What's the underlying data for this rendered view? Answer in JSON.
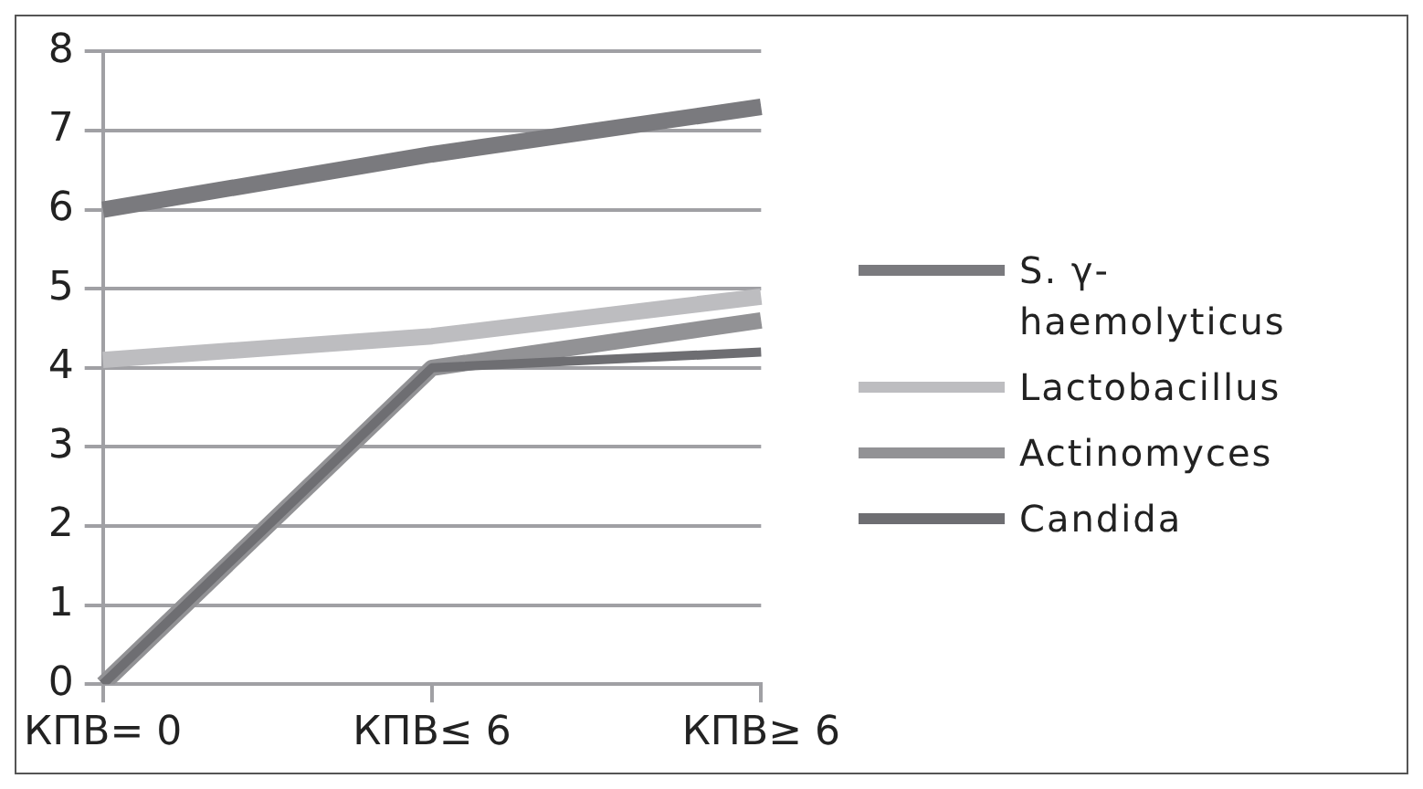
{
  "chart_data": {
    "type": "line",
    "categories": [
      "КПВ= 0",
      "КПВ≤ 6",
      "КПВ≥ 6"
    ],
    "series": [
      {
        "name": "S. γ-haemolyticus",
        "color": "#7a7a7e",
        "values": [
          6,
          6.7,
          7.3
        ]
      },
      {
        "name": "Lactobacillus",
        "color": "#bdbdc0",
        "values": [
          4.1,
          4.4,
          4.9
        ]
      },
      {
        "name": "Actinomyces",
        "color": "#929295",
        "values": [
          0,
          4,
          4.6
        ]
      },
      {
        "name": "Candida",
        "color": "#6e6e72",
        "values": [
          0,
          4,
          4.2
        ]
      }
    ],
    "ylim": [
      0,
      8
    ],
    "yticks": [
      0,
      1,
      2,
      3,
      4,
      5,
      6,
      7,
      8
    ],
    "grid": "y",
    "legend": "right",
    "marker": "none",
    "line_style": "solid"
  }
}
